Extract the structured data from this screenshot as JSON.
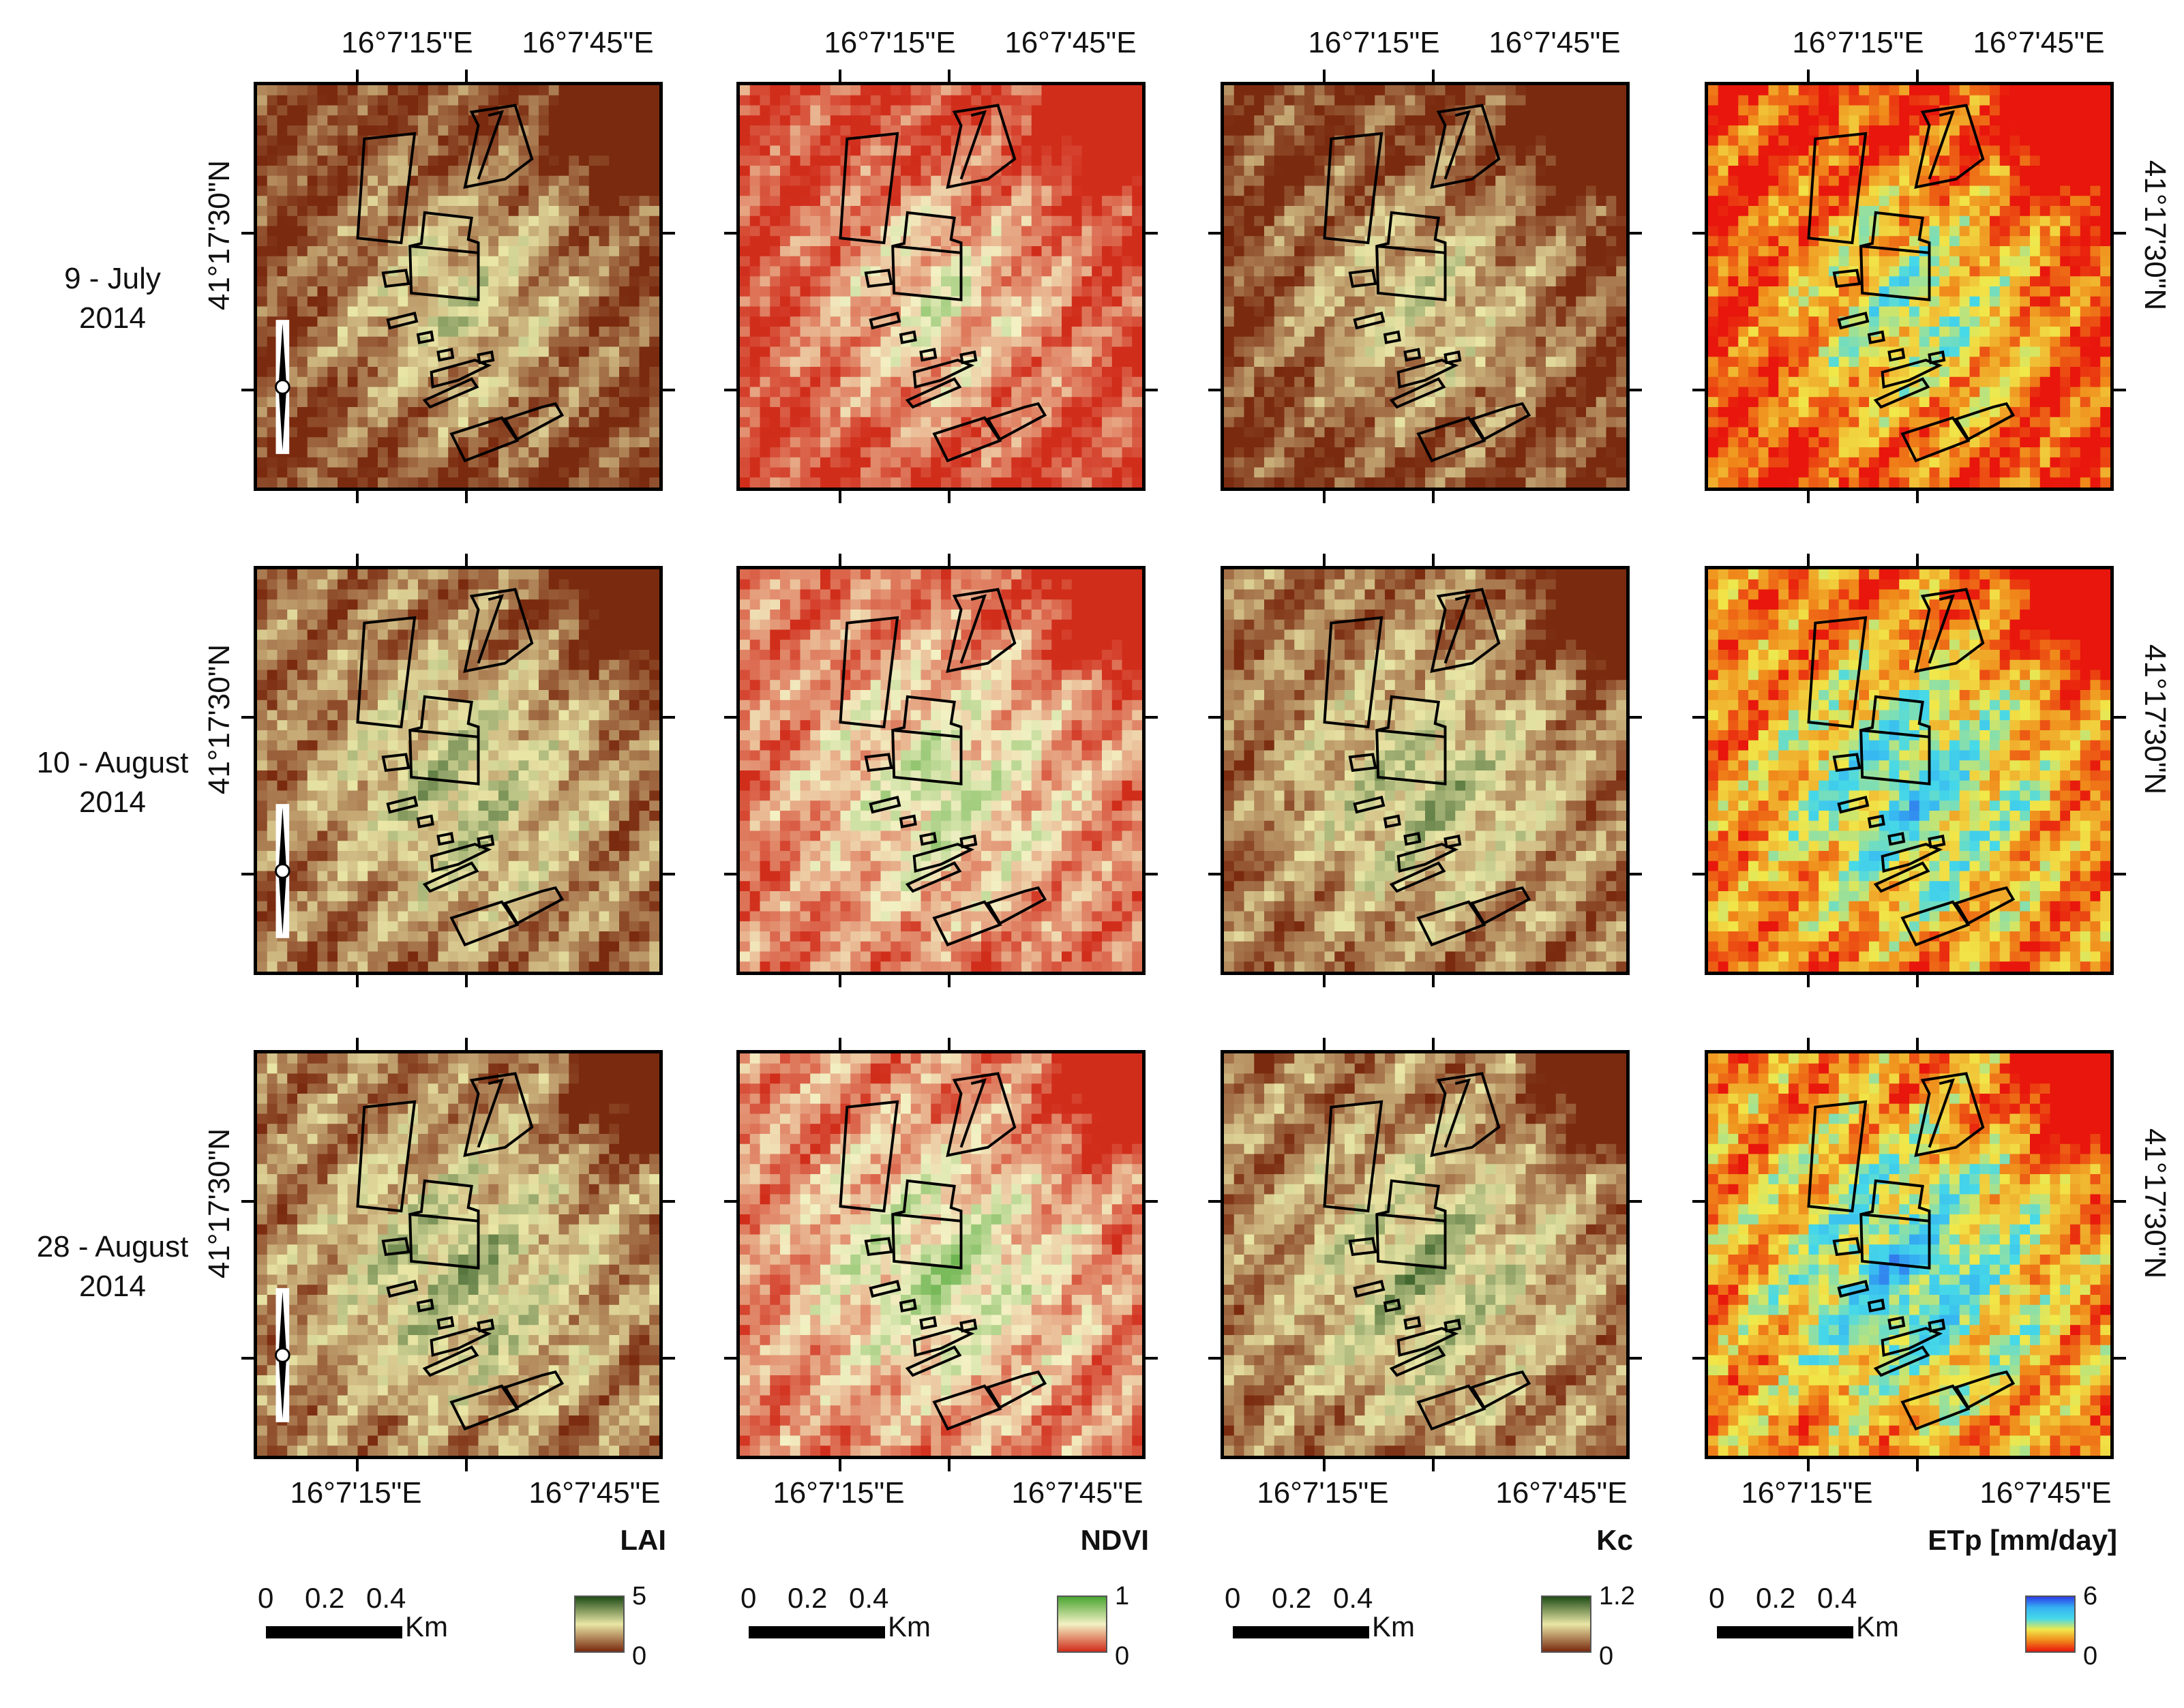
{
  "rows": [
    {
      "label": "9 - July\n2014"
    },
    {
      "label": "10 - August\n2014"
    },
    {
      "label": "28 - August\n2014"
    }
  ],
  "panels": [
    {
      "variable": "LAI",
      "legend_max": "5",
      "legend_min": "0",
      "ramp_colors": [
        "#1f4d17",
        "#e9e6a6",
        "#7a2a0f"
      ],
      "low_bias": 0.35
    },
    {
      "variable": "NDVI",
      "legend_max": "1",
      "legend_min": "0",
      "ramp_colors": [
        "#4aa532",
        "#f3f1c4",
        "#d12d1b"
      ],
      "low_bias": 0.25
    },
    {
      "variable": "Kc",
      "legend_max": "1.2",
      "legend_min": "0",
      "ramp_colors": [
        "#1f4d17",
        "#e9e6a6",
        "#7a2a0f"
      ],
      "low_bias": 0.2
    },
    {
      "variable": "ETp [mm/day]",
      "legend_max": "6",
      "legend_min": "0",
      "ramp_colors": [
        "#2c3ee8",
        "#35b3f2",
        "#46d9e8",
        "#f1e84a",
        "#f08a1a",
        "#e8160c"
      ],
      "low_bias": 0.2
    }
  ],
  "axes": {
    "lon_ticks": [
      "16°7'15\"E",
      "16°7'45\"E"
    ],
    "lat_tick": "41°17'30\"N"
  },
  "scale_bar": {
    "numbers": [
      "0",
      "0.2",
      "0.4"
    ],
    "unit": "Km"
  },
  "north_arrow": {
    "icon": "north-arrow-icon"
  }
}
